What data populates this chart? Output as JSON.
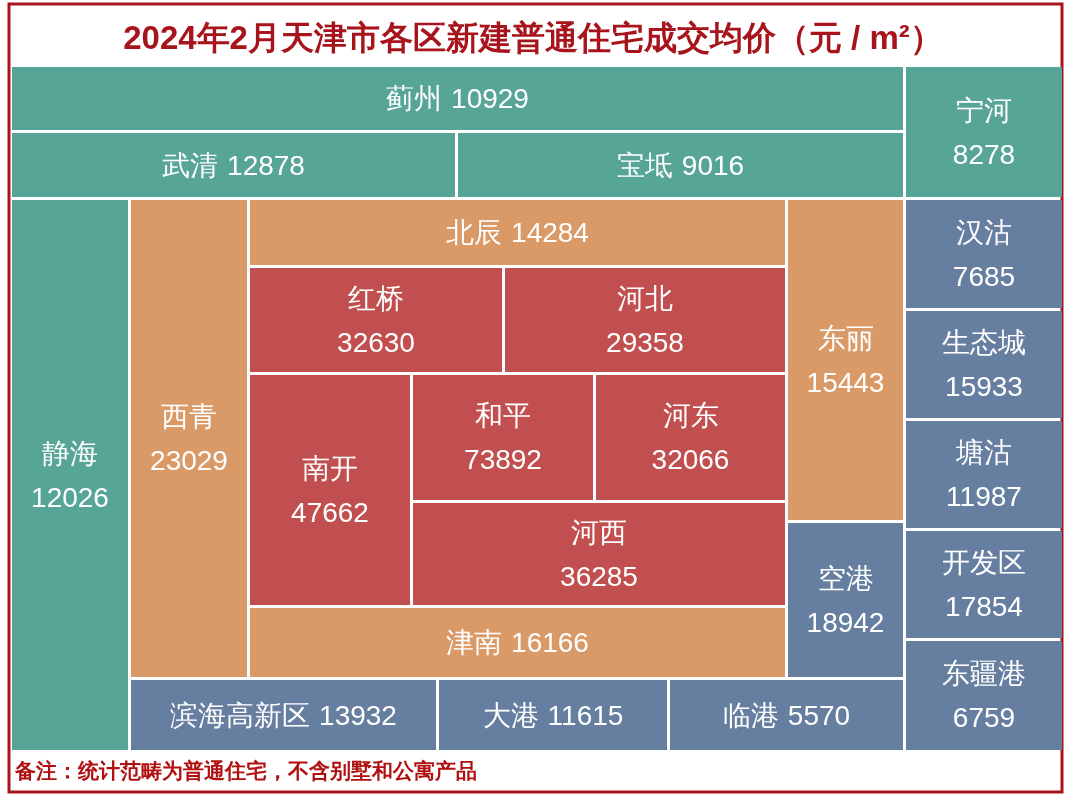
{
  "chart_data": {
    "type": "other",
    "title": "2024年2月天津市各区新建普通住宅成交均价（元 / m²）",
    "categories": [
      "蓟州",
      "宁河",
      "武清",
      "宝坻",
      "静海",
      "西青",
      "北辰",
      "东丽",
      "汉沽",
      "红桥",
      "河北",
      "生态城",
      "南开",
      "和平",
      "河东",
      "塘沽",
      "河西",
      "空港",
      "开发区",
      "津南",
      "滨海高新区",
      "大港",
      "临港",
      "东疆港"
    ],
    "values": [
      10929,
      8278,
      12878,
      9016,
      12026,
      23029,
      14284,
      15443,
      7685,
      32630,
      29358,
      15933,
      47662,
      73892,
      32066,
      11987,
      36285,
      18942,
      17854,
      16166,
      13932,
      11615,
      5570,
      6759
    ],
    "colors": [
      "#57a596",
      "#57a596",
      "#57a596",
      "#57a596",
      "#57a596",
      "#d99a68",
      "#d99a68",
      "#d99a68",
      "#667ea0",
      "#c24f4f",
      "#c24f4f",
      "#667ea0",
      "#c24f4f",
      "#c24f4f",
      "#c24f4f",
      "#667ea0",
      "#c24f4f",
      "#667ea0",
      "#667ea0",
      "#d99a68",
      "#667ea0",
      "#667ea0",
      "#667ea0",
      "#667ea0"
    ],
    "data_labels": true,
    "annotations": [
      "备注：统计范畴为普通住宅，不含别墅和公寓产品"
    ]
  }
}
